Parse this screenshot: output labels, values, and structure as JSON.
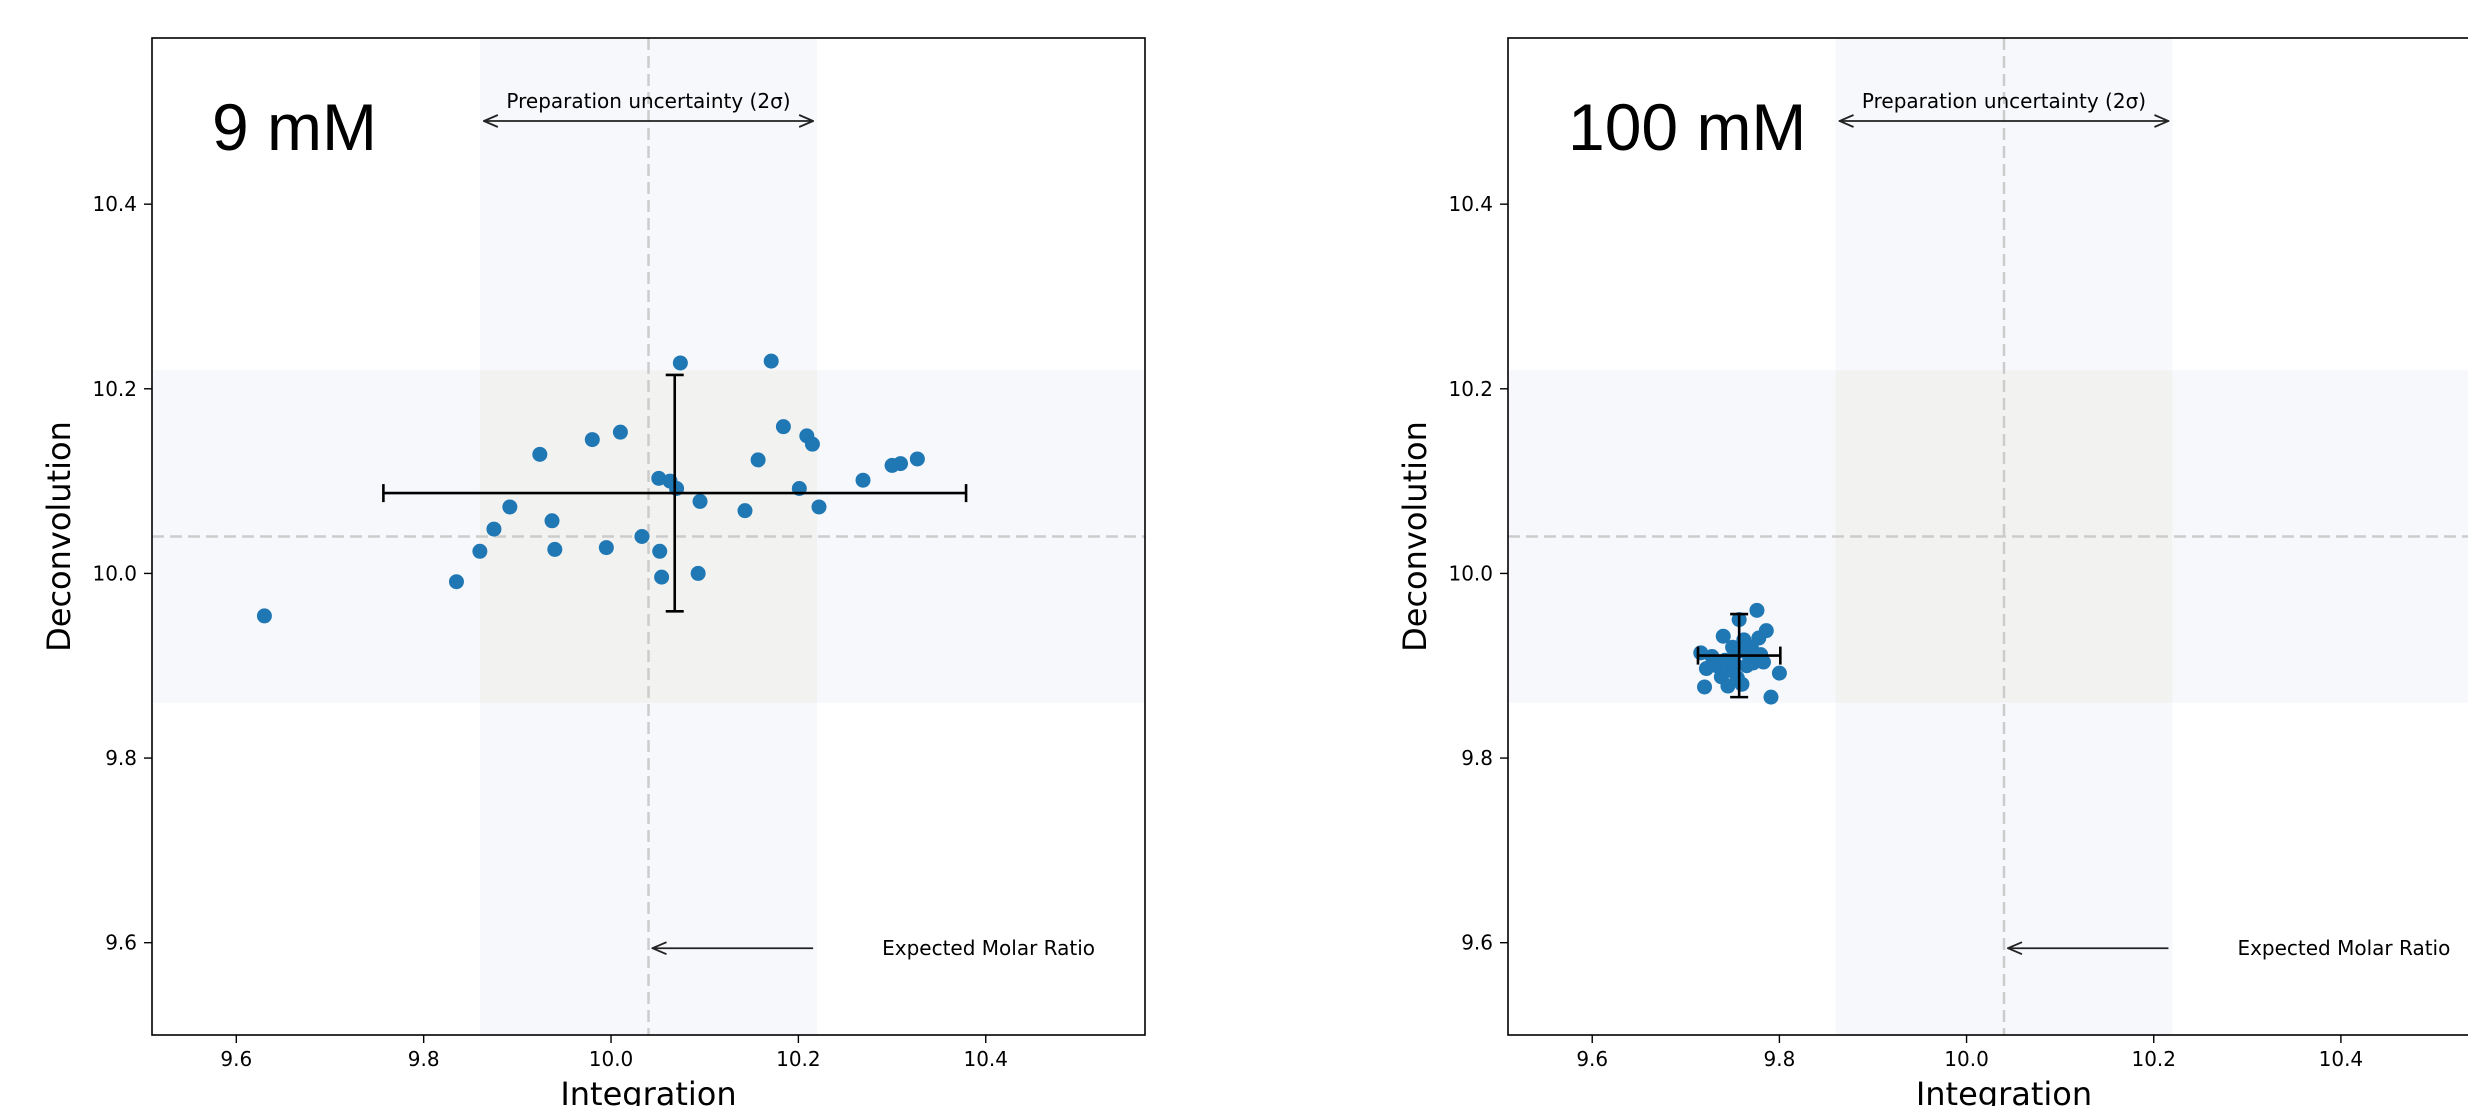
{
  "chart_data": [
    {
      "type": "scatter",
      "panel_label": "9 mM",
      "xlabel": "Integration",
      "ylabel": "Deconvolution",
      "xlim": [
        9.51,
        10.57
      ],
      "ylim": [
        9.5,
        10.58
      ],
      "xticks": [
        "9.6",
        "9.8",
        "10.0",
        "10.2",
        "10.4"
      ],
      "yticks": [
        "9.6",
        "9.8",
        "10.0",
        "10.2",
        "10.4"
      ],
      "grid": false,
      "expected_value": 10.04,
      "uncertainty_band": [
        9.86,
        10.22
      ],
      "annotations": {
        "band": "Preparation uncertainty (2σ)",
        "expected": "Expected Molar Ratio"
      },
      "annotation_y": 9.594,
      "points": [
        [
          9.63,
          9.954
        ],
        [
          9.835,
          9.991
        ],
        [
          9.86,
          10.024
        ],
        [
          9.875,
          10.048
        ],
        [
          9.892,
          10.072
        ],
        [
          9.924,
          10.129
        ],
        [
          9.937,
          10.057
        ],
        [
          9.94,
          10.026
        ],
        [
          9.98,
          10.145
        ],
        [
          9.995,
          10.028
        ],
        [
          10.01,
          10.153
        ],
        [
          10.033,
          10.04
        ],
        [
          10.051,
          10.103
        ],
        [
          10.052,
          10.024
        ],
        [
          10.054,
          9.996
        ],
        [
          10.063,
          10.1
        ],
        [
          10.07,
          10.092
        ],
        [
          10.074,
          10.228
        ],
        [
          10.093,
          10.0
        ],
        [
          10.095,
          10.078
        ],
        [
          10.143,
          10.068
        ],
        [
          10.157,
          10.123
        ],
        [
          10.171,
          10.23
        ],
        [
          10.184,
          10.159
        ],
        [
          10.201,
          10.092
        ],
        [
          10.209,
          10.149
        ],
        [
          10.215,
          10.14
        ],
        [
          10.222,
          10.072
        ],
        [
          10.269,
          10.101
        ],
        [
          10.3,
          10.117
        ],
        [
          10.309,
          10.119
        ],
        [
          10.327,
          10.124
        ]
      ],
      "mean": [
        10.068,
        10.087
      ],
      "error_x": 0.311,
      "error_y": 0.128,
      "marker_color": "#1f77b4",
      "band_color": "#f7f8fc"
    },
    {
      "type": "scatter",
      "panel_label": "100 mM",
      "xlabel": "Integration",
      "ylabel": "Deconvolution",
      "xlim": [
        9.51,
        10.57
      ],
      "ylim": [
        9.5,
        10.58
      ],
      "xticks": [
        "9.6",
        "9.8",
        "10.0",
        "10.2",
        "10.4"
      ],
      "yticks": [
        "9.6",
        "9.8",
        "10.0",
        "10.2",
        "10.4"
      ],
      "grid": false,
      "expected_value": 10.04,
      "uncertainty_band": [
        9.86,
        10.22
      ],
      "annotations": {
        "band": "Preparation uncertainty (2σ)",
        "expected": "Expected Molar Ratio"
      },
      "annotation_y": 9.594,
      "points": [
        [
          9.716,
          9.914
        ],
        [
          9.72,
          9.877
        ],
        [
          9.722,
          9.897
        ],
        [
          9.728,
          9.91
        ],
        [
          9.733,
          9.9
        ],
        [
          9.738,
          9.888
        ],
        [
          9.74,
          9.932
        ],
        [
          9.742,
          9.906
        ],
        [
          9.745,
          9.878
        ],
        [
          9.748,
          9.895
        ],
        [
          9.75,
          9.92
        ],
        [
          9.752,
          9.902
        ],
        [
          9.755,
          9.887
        ],
        [
          9.757,
          9.95
        ],
        [
          9.758,
          9.916
        ],
        [
          9.76,
          9.88
        ],
        [
          9.762,
          9.928
        ],
        [
          9.765,
          9.9
        ],
        [
          9.768,
          9.91
        ],
        [
          9.77,
          9.92
        ],
        [
          9.772,
          9.903
        ],
        [
          9.776,
          9.96
        ],
        [
          9.778,
          9.93
        ],
        [
          9.78,
          9.912
        ],
        [
          9.783,
          9.904
        ],
        [
          9.786,
          9.938
        ],
        [
          9.791,
          9.866
        ],
        [
          9.8,
          9.892
        ]
      ],
      "mean": [
        9.757,
        9.911
      ],
      "error_x": 0.044,
      "error_y": 0.045,
      "marker_color": "#1f77b4",
      "band_color": "#f7f8fc"
    }
  ]
}
